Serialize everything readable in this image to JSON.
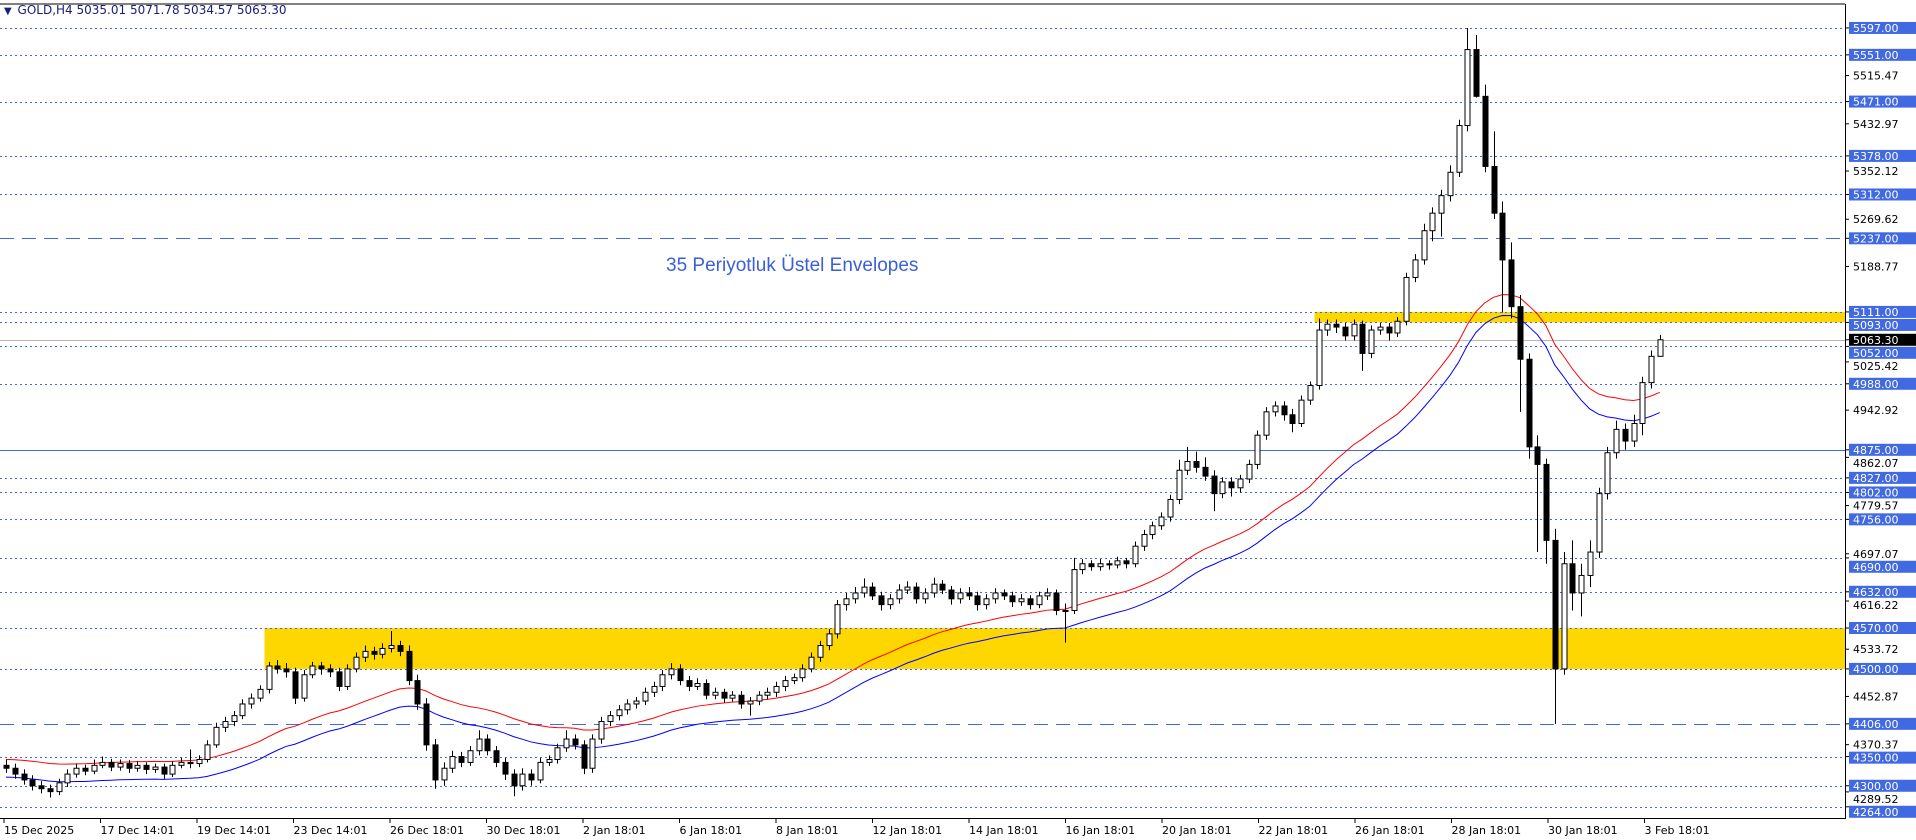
{
  "header": {
    "symbol": "GOLD,H4",
    "open": "5035.01",
    "high": "5071.78",
    "low": "5034.57",
    "close": "5063.30"
  },
  "annotation": "35 Periyotluk Üstel Envelopes",
  "colors": {
    "background": "#ffffff",
    "candle": "#000000",
    "envelope_upper": "#ff0000",
    "envelope_lower": "#0000ff",
    "level_line": "#4169e1",
    "label_bg": "#4169e1",
    "zone": "#ffd700",
    "current_price_bg": "#000000"
  },
  "chart_data": {
    "type": "candlestick",
    "title": "",
    "timeframe": "H4",
    "ylim": [
      4238,
      5638
    ],
    "grid": false,
    "indicator": {
      "type": "envelopes",
      "method": "exponential",
      "period": 35
    },
    "current_price": "5063.30",
    "level_lines": [
      {
        "price": "5597.00",
        "style": "dotted"
      },
      {
        "price": "5551.00",
        "style": "dotted"
      },
      {
        "price": "5471.00",
        "style": "dotted"
      },
      {
        "price": "5378.00",
        "style": "dotted"
      },
      {
        "price": "5312.00",
        "style": "dotted"
      },
      {
        "price": "5237.00",
        "style": "dashed"
      },
      {
        "price": "5111.00",
        "style": "dotted"
      },
      {
        "price": "5093.00",
        "style": "dotted"
      },
      {
        "price": "5052.00",
        "style": "dotted"
      },
      {
        "price": "4988.00",
        "style": "dotted"
      },
      {
        "price": "4875.00",
        "style": "solid"
      },
      {
        "price": "4827.00",
        "style": "dotted"
      },
      {
        "price": "4802.00",
        "style": "dotted"
      },
      {
        "price": "4756.00",
        "style": "dotted"
      },
      {
        "price": "4690.00",
        "style": "dotted"
      },
      {
        "price": "4632.00",
        "style": "dotted"
      },
      {
        "price": "4570.00",
        "style": "dotted"
      },
      {
        "price": "4500.00",
        "style": "dotted"
      },
      {
        "price": "4406.00",
        "style": "dashed"
      },
      {
        "price": "4350.00",
        "style": "dotted"
      },
      {
        "price": "4300.00",
        "style": "dotted"
      },
      {
        "price": "4264.00",
        "style": "dotted"
      }
    ],
    "zones": [
      {
        "from": 4500,
        "to": 4570,
        "start_candle": 30
      },
      {
        "from": 5093,
        "to": 5111,
        "start_candle": 150
      }
    ],
    "y_tick_labels": [
      "5515.47",
      "5432.97",
      "5352.12",
      "5269.62",
      "5188.77",
      "5025.42",
      "4942.92",
      "4862.07",
      "4779.57",
      "4697.07",
      "4616.22",
      "4533.72",
      "4452.87",
      "4370.37",
      "4289.52"
    ],
    "x_tick_labels": [
      "15 Dec 2025",
      "17 Dec 14:01",
      "19 Dec 14:01",
      "23 Dec 14:01",
      "26 Dec 18:01",
      "30 Dec 18:01",
      "2 Jan 18:01",
      "6 Jan 18:01",
      "8 Jan 18:01",
      "12 Jan 18:01",
      "14 Jan 18:01",
      "16 Jan 18:01",
      "20 Jan 18:01",
      "22 Jan 18:01",
      "26 Jan 18:01",
      "28 Jan 18:01",
      "30 Jan 18:01",
      "3 Feb 18:01"
    ],
    "candles_ohlc": [
      [
        4335,
        4345,
        4322,
        4330
      ],
      [
        4330,
        4338,
        4312,
        4320
      ],
      [
        4320,
        4328,
        4302,
        4310
      ],
      [
        4310,
        4318,
        4292,
        4300
      ],
      [
        4300,
        4308,
        4287,
        4295
      ],
      [
        4295,
        4302,
        4280,
        4290
      ],
      [
        4290,
        4312,
        4284,
        4305
      ],
      [
        4305,
        4328,
        4298,
        4320
      ],
      [
        4320,
        4338,
        4314,
        4330
      ],
      [
        4330,
        4336,
        4318,
        4325
      ],
      [
        4325,
        4345,
        4320,
        4335
      ],
      [
        4335,
        4350,
        4330,
        4340
      ],
      [
        4340,
        4346,
        4325,
        4332
      ],
      [
        4332,
        4345,
        4326,
        4338
      ],
      [
        4338,
        4344,
        4322,
        4330
      ],
      [
        4330,
        4342,
        4324,
        4335
      ],
      [
        4335,
        4340,
        4320,
        4328
      ],
      [
        4328,
        4338,
        4322,
        4332
      ],
      [
        4332,
        4338,
        4312,
        4320
      ],
      [
        4320,
        4342,
        4315,
        4335
      ],
      [
        4335,
        4348,
        4330,
        4340
      ],
      [
        4340,
        4362,
        4330,
        4338
      ],
      [
        4338,
        4352,
        4332,
        4345
      ],
      [
        4345,
        4378,
        4340,
        4370
      ],
      [
        4370,
        4408,
        4365,
        4400
      ],
      [
        4400,
        4418,
        4392,
        4410
      ],
      [
        4410,
        4428,
        4402,
        4420
      ],
      [
        4420,
        4448,
        4414,
        4440
      ],
      [
        4440,
        4458,
        4432,
        4450
      ],
      [
        4450,
        4472,
        4444,
        4465
      ],
      [
        4465,
        4512,
        4458,
        4505
      ],
      [
        4505,
        4515,
        4492,
        4500
      ],
      [
        4500,
        4510,
        4485,
        4495
      ],
      [
        4495,
        4502,
        4440,
        4450
      ],
      [
        4450,
        4498,
        4444,
        4490
      ],
      [
        4490,
        4512,
        4484,
        4505
      ],
      [
        4505,
        4512,
        4490,
        4500
      ],
      [
        4500,
        4508,
        4486,
        4495
      ],
      [
        4495,
        4502,
        4462,
        4470
      ],
      [
        4470,
        4508,
        4464,
        4500
      ],
      [
        4500,
        4528,
        4494,
        4520
      ],
      [
        4520,
        4540,
        4512,
        4530
      ],
      [
        4530,
        4538,
        4516,
        4525
      ],
      [
        4525,
        4544,
        4518,
        4535
      ],
      [
        4535,
        4565,
        4528,
        4540
      ],
      [
        4540,
        4548,
        4522,
        4530
      ],
      [
        4530,
        4540,
        4472,
        4480
      ],
      [
        4480,
        4490,
        4430,
        4440
      ],
      [
        4440,
        4450,
        4360,
        4370
      ],
      [
        4370,
        4380,
        4295,
        4310
      ],
      [
        4310,
        4340,
        4300,
        4330
      ],
      [
        4330,
        4360,
        4322,
        4350
      ],
      [
        4350,
        4358,
        4332,
        4340
      ],
      [
        4340,
        4368,
        4334,
        4360
      ],
      [
        4360,
        4395,
        4352,
        4380
      ],
      [
        4380,
        4388,
        4352,
        4360
      ],
      [
        4360,
        4368,
        4332,
        4340
      ],
      [
        4340,
        4348,
        4310,
        4320
      ],
      [
        4320,
        4328,
        4282,
        4300
      ],
      [
        4300,
        4330,
        4292,
        4320
      ],
      [
        4320,
        4328,
        4300,
        4310
      ],
      [
        4310,
        4348,
        4304,
        4340
      ],
      [
        4340,
        4352,
        4334,
        4345
      ],
      [
        4345,
        4372,
        4338,
        4365
      ],
      [
        4365,
        4395,
        4358,
        4380
      ],
      [
        4380,
        4388,
        4362,
        4370
      ],
      [
        4370,
        4378,
        4320,
        4330
      ],
      [
        4330,
        4388,
        4322,
        4380
      ],
      [
        4380,
        4418,
        4372,
        4410
      ],
      [
        4410,
        4428,
        4402,
        4420
      ],
      [
        4420,
        4438,
        4412,
        4430
      ],
      [
        4430,
        4448,
        4422,
        4440
      ],
      [
        4440,
        4452,
        4432,
        4445
      ],
      [
        4445,
        4468,
        4438,
        4460
      ],
      [
        4460,
        4478,
        4452,
        4470
      ],
      [
        4470,
        4498,
        4462,
        4490
      ],
      [
        4490,
        4510,
        4482,
        4500
      ],
      [
        4500,
        4508,
        4472,
        4480
      ],
      [
        4480,
        4488,
        4462,
        4470
      ],
      [
        4470,
        4484,
        4464,
        4475
      ],
      [
        4475,
        4482,
        4448,
        4455
      ],
      [
        4455,
        4468,
        4448,
        4460
      ],
      [
        4460,
        4466,
        4442,
        4450
      ],
      [
        4450,
        4462,
        4444,
        4455
      ],
      [
        4455,
        4462,
        4432,
        4440
      ],
      [
        4440,
        4452,
        4420,
        4445
      ],
      [
        4445,
        4462,
        4438,
        4455
      ],
      [
        4455,
        4468,
        4448,
        4460
      ],
      [
        4460,
        4478,
        4452,
        4470
      ],
      [
        4470,
        4488,
        4462,
        4480
      ],
      [
        4480,
        4492,
        4474,
        4485
      ],
      [
        4485,
        4508,
        4478,
        4500
      ],
      [
        4500,
        4528,
        4494,
        4520
      ],
      [
        4520,
        4548,
        4512,
        4540
      ],
      [
        4540,
        4568,
        4532,
        4560
      ],
      [
        4560,
        4618,
        4552,
        4610
      ],
      [
        4610,
        4630,
        4600,
        4620
      ],
      [
        4620,
        4640,
        4612,
        4630
      ],
      [
        4630,
        4655,
        4622,
        4640
      ],
      [
        4640,
        4648,
        4618,
        4625
      ],
      [
        4625,
        4632,
        4600,
        4610
      ],
      [
        4610,
        4628,
        4602,
        4620
      ],
      [
        4620,
        4645,
        4612,
        4635
      ],
      [
        4635,
        4650,
        4628,
        4640
      ],
      [
        4640,
        4648,
        4612,
        4620
      ],
      [
        4620,
        4638,
        4612,
        4630
      ],
      [
        4630,
        4656,
        4622,
        4645
      ],
      [
        4645,
        4652,
        4628,
        4635
      ],
      [
        4635,
        4642,
        4610,
        4620
      ],
      [
        4620,
        4638,
        4612,
        4630
      ],
      [
        4630,
        4640,
        4618,
        4625
      ],
      [
        4625,
        4632,
        4600,
        4610
      ],
      [
        4610,
        4628,
        4602,
        4620
      ],
      [
        4620,
        4638,
        4612,
        4630
      ],
      [
        4630,
        4636,
        4618,
        4625
      ],
      [
        4625,
        4632,
        4606,
        4615
      ],
      [
        4615,
        4628,
        4608,
        4620
      ],
      [
        4620,
        4626,
        4602,
        4610
      ],
      [
        4610,
        4632,
        4604,
        4625
      ],
      [
        4625,
        4638,
        4618,
        4630
      ],
      [
        4630,
        4636,
        4592,
        4600
      ],
      [
        4600,
        4612,
        4545,
        4600
      ],
      [
        4600,
        4690,
        4594,
        4670
      ],
      [
        4670,
        4688,
        4662,
        4680
      ],
      [
        4680,
        4686,
        4668,
        4675
      ],
      [
        4675,
        4688,
        4668,
        4680
      ],
      [
        4680,
        4686,
        4670,
        4678
      ],
      [
        4678,
        4692,
        4672,
        4685
      ],
      [
        4685,
        4690,
        4672,
        4680
      ],
      [
        4680,
        4718,
        4674,
        4710
      ],
      [
        4710,
        4738,
        4702,
        4730
      ],
      [
        4730,
        4752,
        4722,
        4745
      ],
      [
        4745,
        4768,
        4738,
        4760
      ],
      [
        4760,
        4798,
        4752,
        4790
      ],
      [
        4790,
        4858,
        4782,
        4840
      ],
      [
        4840,
        4880,
        4832,
        4855
      ],
      [
        4855,
        4872,
        4836,
        4845
      ],
      [
        4845,
        4862,
        4822,
        4830
      ],
      [
        4830,
        4840,
        4770,
        4800
      ],
      [
        4800,
        4828,
        4792,
        4820
      ],
      [
        4820,
        4828,
        4795,
        4810
      ],
      [
        4810,
        4832,
        4802,
        4825
      ],
      [
        4825,
        4858,
        4818,
        4850
      ],
      [
        4850,
        4908,
        4842,
        4900
      ],
      [
        4900,
        4948,
        4892,
        4940
      ],
      [
        4940,
        4958,
        4932,
        4950
      ],
      [
        4950,
        4958,
        4925,
        4935
      ],
      [
        4935,
        4945,
        4905,
        4920
      ],
      [
        4920,
        4968,
        4914,
        4960
      ],
      [
        4960,
        4992,
        4952,
        4985
      ],
      [
        4985,
        5100,
        4978,
        5080
      ],
      [
        5080,
        5098,
        5070,
        5090
      ],
      [
        5090,
        5098,
        5075,
        5085
      ],
      [
        5085,
        5092,
        5062,
        5070
      ],
      [
        5070,
        5098,
        5062,
        5090
      ],
      [
        5090,
        5096,
        5010,
        5040
      ],
      [
        5040,
        5088,
        5032,
        5080
      ],
      [
        5080,
        5092,
        5072,
        5085
      ],
      [
        5085,
        5092,
        5062,
        5075
      ],
      [
        5075,
        5102,
        5068,
        5095
      ],
      [
        5095,
        5178,
        5088,
        5170
      ],
      [
        5170,
        5210,
        5162,
        5200
      ],
      [
        5200,
        5262,
        5192,
        5250
      ],
      [
        5250,
        5290,
        5232,
        5280
      ],
      [
        5280,
        5320,
        5240,
        5310
      ],
      [
        5310,
        5362,
        5300,
        5350
      ],
      [
        5350,
        5440,
        5342,
        5430
      ],
      [
        5430,
        5597,
        5420,
        5560
      ],
      [
        5560,
        5585,
        5478,
        5480
      ],
      [
        5480,
        5500,
        5350,
        5360
      ],
      [
        5360,
        5420,
        5270,
        5280
      ],
      [
        5280,
        5300,
        5110,
        5200
      ],
      [
        5200,
        5230,
        5100,
        5120
      ],
      [
        5120,
        5140,
        4940,
        5030
      ],
      [
        5030,
        5040,
        4860,
        4880
      ],
      [
        4880,
        4900,
        4700,
        4850
      ],
      [
        4850,
        4860,
        4680,
        4720
      ],
      [
        4720,
        4740,
        4406,
        4500
      ],
      [
        4500,
        4700,
        4490,
        4680
      ],
      [
        4680,
        4720,
        4600,
        4630
      ],
      [
        4630,
        4680,
        4590,
        4660
      ],
      [
        4660,
        4720,
        4640,
        4700
      ],
      [
        4700,
        4810,
        4690,
        4800
      ],
      [
        4800,
        4880,
        4790,
        4870
      ],
      [
        4870,
        4925,
        4860,
        4910
      ],
      [
        4910,
        4920,
        4875,
        4890
      ],
      [
        4890,
        4935,
        4880,
        4920
      ],
      [
        4920,
        5000,
        4900,
        4990
      ],
      [
        4990,
        5045,
        4980,
        5035
      ],
      [
        5035.01,
        5071.78,
        5034.57,
        5063.3
      ]
    ]
  }
}
